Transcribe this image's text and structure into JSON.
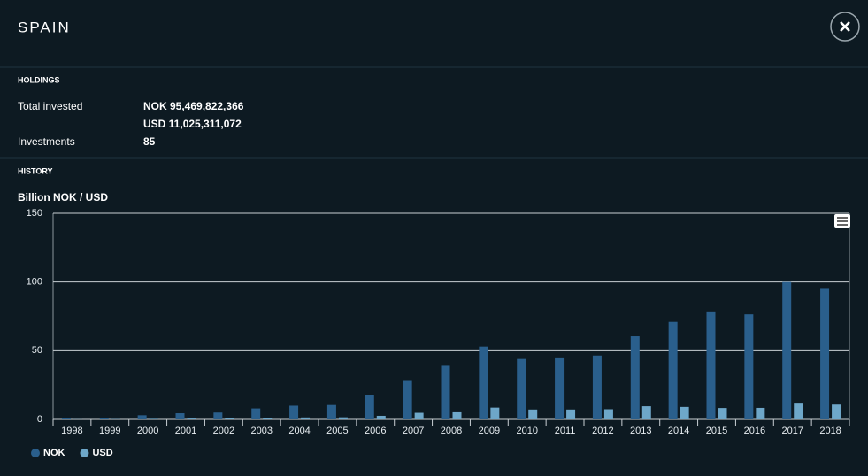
{
  "header": {
    "title": "SPAIN"
  },
  "holdings": {
    "heading": "HOLDINGS",
    "total_invested": {
      "label": "Total invested",
      "nok": "NOK 95,469,822,366",
      "usd": "USD 11,025,311,072"
    },
    "investments": {
      "label": "Investments",
      "value": 85
    }
  },
  "history": {
    "heading": "HISTORY"
  },
  "chart_data": {
    "type": "bar",
    "title": "Billion NOK / USD",
    "categories": [
      "1998",
      "1999",
      "2000",
      "2001",
      "2002",
      "2003",
      "2004",
      "2005",
      "2006",
      "2007",
      "2008",
      "2009",
      "2010",
      "2011",
      "2012",
      "2013",
      "2014",
      "2015",
      "2016",
      "2017",
      "2018"
    ],
    "series": [
      {
        "name": "NOK",
        "color": "#2a5f8c",
        "values": [
          1,
          1,
          3,
          4.5,
          5,
          8,
          10,
          10.5,
          17.5,
          28,
          39,
          53,
          44,
          44.5,
          46.5,
          60.5,
          71,
          78,
          76.5,
          100,
          95
        ]
      },
      {
        "name": "USD",
        "color": "#6ea7c9",
        "values": [
          0.1,
          0.2,
          0.4,
          0.6,
          0.7,
          1.2,
          1.4,
          1.5,
          2.6,
          4.8,
          5.2,
          8.6,
          7.2,
          7.2,
          7.4,
          9.6,
          9.1,
          8.3,
          8.4,
          11.5,
          10.8
        ]
      }
    ],
    "ylim": [
      0,
      150
    ],
    "yticks": [
      0,
      50,
      100,
      150
    ],
    "grid": true,
    "legend": "bottom-left"
  }
}
